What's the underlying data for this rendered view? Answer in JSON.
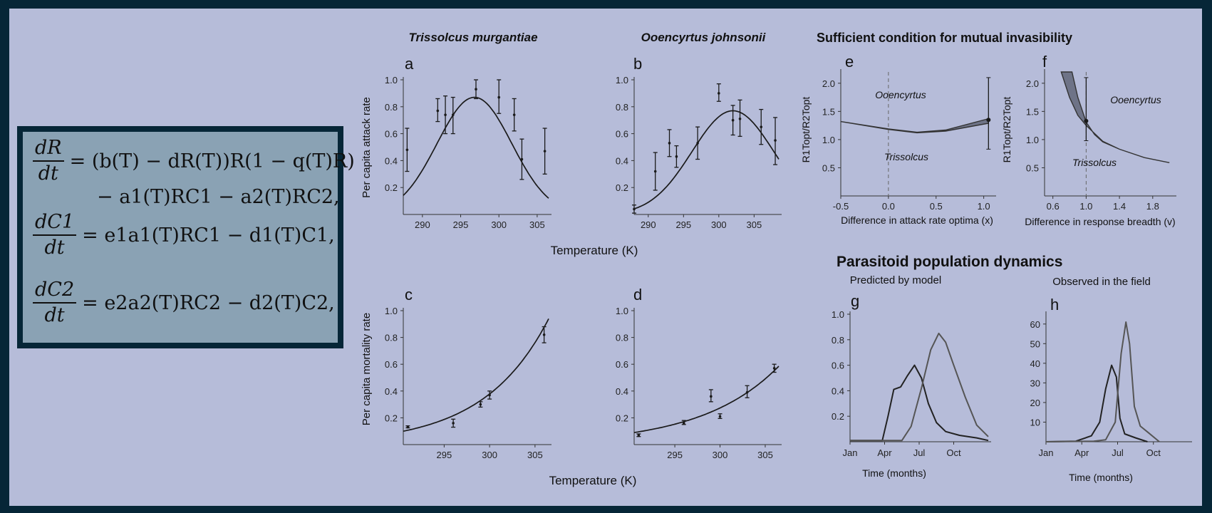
{
  "equations": [
    {
      "num": "dR",
      "den": "dt",
      "rhs": "= (b(T) − dR(T))R(1 − q(T)R)"
    },
    {
      "cont": "− a1(T)RC1 − a2(T)RC2,"
    },
    {
      "num": "dC1",
      "den": "dt",
      "rhs": "= e1a1(T)RC1 − d1(T)C1,"
    },
    {
      "num": "dC2",
      "den": "dt",
      "rhs": "= e2a2(T)RC2 − d2(T)C2,"
    }
  ],
  "titles": {
    "species_a": "Trissolcus murgantiae",
    "species_b": "Ooencyrtus johnsonii",
    "invasibility": "Sufficient condition for mutual invasibility",
    "dynamics": "Parasitoid population dynamics",
    "predicted": "Predicted by model",
    "observed": "Observed in the field"
  },
  "chart_data": [
    {
      "id": "a",
      "type": "scatter",
      "ylabel": "Per capita attack rate",
      "xlabel": "Temperature (K)",
      "xlim": [
        287.5,
        306.5
      ],
      "ylim": [
        0,
        1.0
      ],
      "xticks": [
        290,
        295,
        300,
        305
      ],
      "yticks": [
        0.2,
        0.4,
        0.6,
        0.8,
        1.0
      ],
      "points": [
        [
          288,
          0.48,
          0.32,
          0.64
        ],
        [
          292,
          0.77,
          0.69,
          0.86
        ],
        [
          293,
          0.74,
          0.6,
          0.88
        ],
        [
          294,
          0.74,
          0.6,
          0.87
        ],
        [
          297,
          0.93,
          0.86,
          1.0
        ],
        [
          300,
          0.87,
          0.75,
          1.0
        ],
        [
          302,
          0.74,
          0.62,
          0.86
        ],
        [
          303,
          0.41,
          0.26,
          0.56
        ],
        [
          306,
          0.47,
          0.3,
          0.64
        ]
      ],
      "curve": {
        "kind": "gauss",
        "peak": 0.87,
        "center": 296.8,
        "width": 6.9
      }
    },
    {
      "id": "b",
      "type": "scatter",
      "xlabel": "Temperature (K)",
      "xlim": [
        288,
        308.5
      ],
      "ylim": [
        0,
        1.0
      ],
      "xticks": [
        290,
        295,
        300,
        305
      ],
      "yticks": [
        0.2,
        0.4,
        0.6,
        0.8,
        1.0
      ],
      "points": [
        [
          288,
          0.04,
          0.01,
          0.07
        ],
        [
          291,
          0.32,
          0.18,
          0.46
        ],
        [
          293,
          0.53,
          0.43,
          0.63
        ],
        [
          294,
          0.43,
          0.35,
          0.51
        ],
        [
          297,
          0.53,
          0.41,
          0.65
        ],
        [
          300,
          0.9,
          0.84,
          0.97
        ],
        [
          302,
          0.7,
          0.59,
          0.81
        ],
        [
          303,
          0.71,
          0.58,
          0.85
        ],
        [
          306,
          0.65,
          0.52,
          0.78
        ],
        [
          308,
          0.55,
          0.37,
          0.72
        ]
      ],
      "curve": {
        "kind": "gauss",
        "peak": 0.77,
        "center": 302,
        "width": 8.2
      }
    },
    {
      "id": "c",
      "type": "scatter",
      "ylabel": "Per capita mortality rate",
      "xlabel": "Temperature (K)",
      "xlim": [
        290.5,
        306.5
      ],
      "ylim": [
        0,
        1.0
      ],
      "xticks": [
        295,
        300,
        305
      ],
      "yticks": [
        0.2,
        0.4,
        0.6,
        0.8,
        1.0
      ],
      "points": [
        [
          291,
          0.13,
          0.125,
          0.14
        ],
        [
          296,
          0.16,
          0.13,
          0.19
        ],
        [
          299,
          0.3,
          0.28,
          0.32
        ],
        [
          300,
          0.37,
          0.34,
          0.4
        ],
        [
          306,
          0.82,
          0.76,
          0.88
        ]
      ],
      "curve": {
        "kind": "exp",
        "a": 0.1,
        "b": 0.14,
        "x0": 290.5
      }
    },
    {
      "id": "d",
      "type": "scatter",
      "xlabel": "Temperature (K)",
      "xlim": [
        290.5,
        306.5
      ],
      "ylim": [
        0,
        1.0
      ],
      "xticks": [
        295,
        300,
        305
      ],
      "yticks": [
        0.2,
        0.4,
        0.6,
        0.8,
        1.0
      ],
      "points": [
        [
          291,
          0.07,
          0.06,
          0.08
        ],
        [
          296,
          0.16,
          0.15,
          0.18
        ],
        [
          299,
          0.36,
          0.32,
          0.41
        ],
        [
          300,
          0.21,
          0.195,
          0.23
        ],
        [
          303,
          0.39,
          0.35,
          0.44
        ],
        [
          306,
          0.57,
          0.54,
          0.6
        ]
      ],
      "curve": {
        "kind": "exp",
        "a": 0.09,
        "b": 0.117,
        "x0": 290.5
      }
    },
    {
      "id": "e",
      "type": "area",
      "ylabel": "R1Topt/R2Topt",
      "xlabel": "Difference in attack rate optima (x)",
      "xlim": [
        -0.5,
        1.1
      ],
      "ylim": [
        0,
        2.2
      ],
      "xticks": [
        -0.5,
        0.0,
        0.5,
        1.0
      ],
      "yticks": [
        0.5,
        1.0,
        1.5,
        2.0
      ],
      "region_labels": [
        "Ooencyrtus",
        "Trissolcus"
      ],
      "upper": [
        [
          -0.5,
          1.32
        ],
        [
          0,
          1.19
        ],
        [
          0.3,
          1.13
        ],
        [
          0.6,
          1.17
        ],
        [
          1.05,
          1.37
        ]
      ],
      "lower": [
        [
          -0.5,
          1.32
        ],
        [
          0,
          1.18
        ],
        [
          0.3,
          1.12
        ],
        [
          0.6,
          1.15
        ],
        [
          1.05,
          1.29
        ]
      ],
      "errorbar": [
        1.05,
        1.35,
        0.83,
        2.1
      ]
    },
    {
      "id": "f",
      "type": "area",
      "ylabel": "R1Topt/R2Topt",
      "xlabel": "Difference in response breadth (v)",
      "xlim": [
        0.5,
        2.05
      ],
      "ylim": [
        0,
        2.2
      ],
      "xticks": [
        0.6,
        1.0,
        1.4,
        1.8
      ],
      "yticks": [
        0.5,
        1.0,
        1.5,
        2.0
      ],
      "region_labels": [
        "Ooencyrtus",
        "Trissolcus"
      ],
      "upper": [
        [
          0.7,
          2.2
        ],
        [
          0.8,
          1.75
        ],
        [
          0.9,
          1.43
        ],
        [
          1.0,
          1.25
        ],
        [
          1.2,
          0.97
        ],
        [
          1.4,
          0.83
        ],
        [
          1.7,
          0.68
        ],
        [
          2.0,
          0.59
        ]
      ],
      "lower": [
        [
          0.83,
          2.2
        ],
        [
          0.9,
          1.75
        ],
        [
          1.0,
          1.31
        ],
        [
          1.1,
          1.09
        ],
        [
          1.2,
          0.96
        ],
        [
          1.4,
          0.83
        ],
        [
          1.7,
          0.68
        ],
        [
          2.0,
          0.59
        ]
      ],
      "errorbar": [
        1.0,
        1.33,
        0.98,
        2.1
      ]
    },
    {
      "id": "g",
      "type": "line",
      "xlabel": "Time (months)",
      "xlim": [
        0,
        12
      ],
      "ylim": [
        0,
        1.0
      ],
      "xticks": [
        "Jan",
        "Apr",
        "Jul",
        "Oct"
      ],
      "yticks": [
        0.2,
        0.4,
        0.6,
        0.8,
        1.0
      ],
      "series": [
        {
          "values": [
            [
              0,
              0.01
            ],
            [
              1.5,
              0.01
            ],
            [
              2.8,
              0.01
            ],
            [
              3.3,
              0.2
            ],
            [
              3.8,
              0.41
            ],
            [
              4.4,
              0.43
            ],
            [
              5.0,
              0.52
            ],
            [
              5.6,
              0.6
            ],
            [
              6.2,
              0.5
            ],
            [
              6.8,
              0.3
            ],
            [
              7.5,
              0.15
            ],
            [
              8.3,
              0.08
            ],
            [
              9.5,
              0.05
            ],
            [
              11,
              0.03
            ],
            [
              12,
              0.01
            ]
          ]
        },
        {
          "values": [
            [
              0,
              0.01
            ],
            [
              4.5,
              0.01
            ],
            [
              5.3,
              0.12
            ],
            [
              6.2,
              0.42
            ],
            [
              7.0,
              0.72
            ],
            [
              7.7,
              0.85
            ],
            [
              8.3,
              0.78
            ],
            [
              9,
              0.6
            ],
            [
              10,
              0.35
            ],
            [
              11,
              0.13
            ],
            [
              12,
              0.04
            ]
          ]
        }
      ]
    },
    {
      "id": "h",
      "type": "line",
      "xlabel": "Time (months)",
      "xlim": [
        0,
        12
      ],
      "ylim": [
        0,
        65
      ],
      "xticks": [
        "Jan",
        "Apr",
        "Jul",
        "Oct"
      ],
      "yticks": [
        10,
        20,
        30,
        40,
        50,
        60
      ],
      "series": [
        {
          "values": [
            [
              0,
              0
            ],
            [
              2.5,
              0.3
            ],
            [
              3.8,
              3
            ],
            [
              4.5,
              10
            ],
            [
              5.0,
              27
            ],
            [
              5.5,
              39
            ],
            [
              5.9,
              33
            ],
            [
              6.2,
              12
            ],
            [
              6.6,
              4
            ],
            [
              7.5,
              2
            ],
            [
              8.5,
              0
            ]
          ]
        },
        {
          "values": [
            [
              0,
              0
            ],
            [
              4,
              0.3
            ],
            [
              5,
              1
            ],
            [
              5.8,
              10
            ],
            [
              6.3,
              45
            ],
            [
              6.7,
              61
            ],
            [
              7.0,
              50
            ],
            [
              7.4,
              18
            ],
            [
              7.9,
              8
            ],
            [
              8.5,
              5
            ],
            [
              9.5,
              0
            ]
          ]
        }
      ]
    }
  ],
  "panel_letters": [
    "a",
    "b",
    "c",
    "d",
    "e",
    "f",
    "g",
    "h"
  ]
}
